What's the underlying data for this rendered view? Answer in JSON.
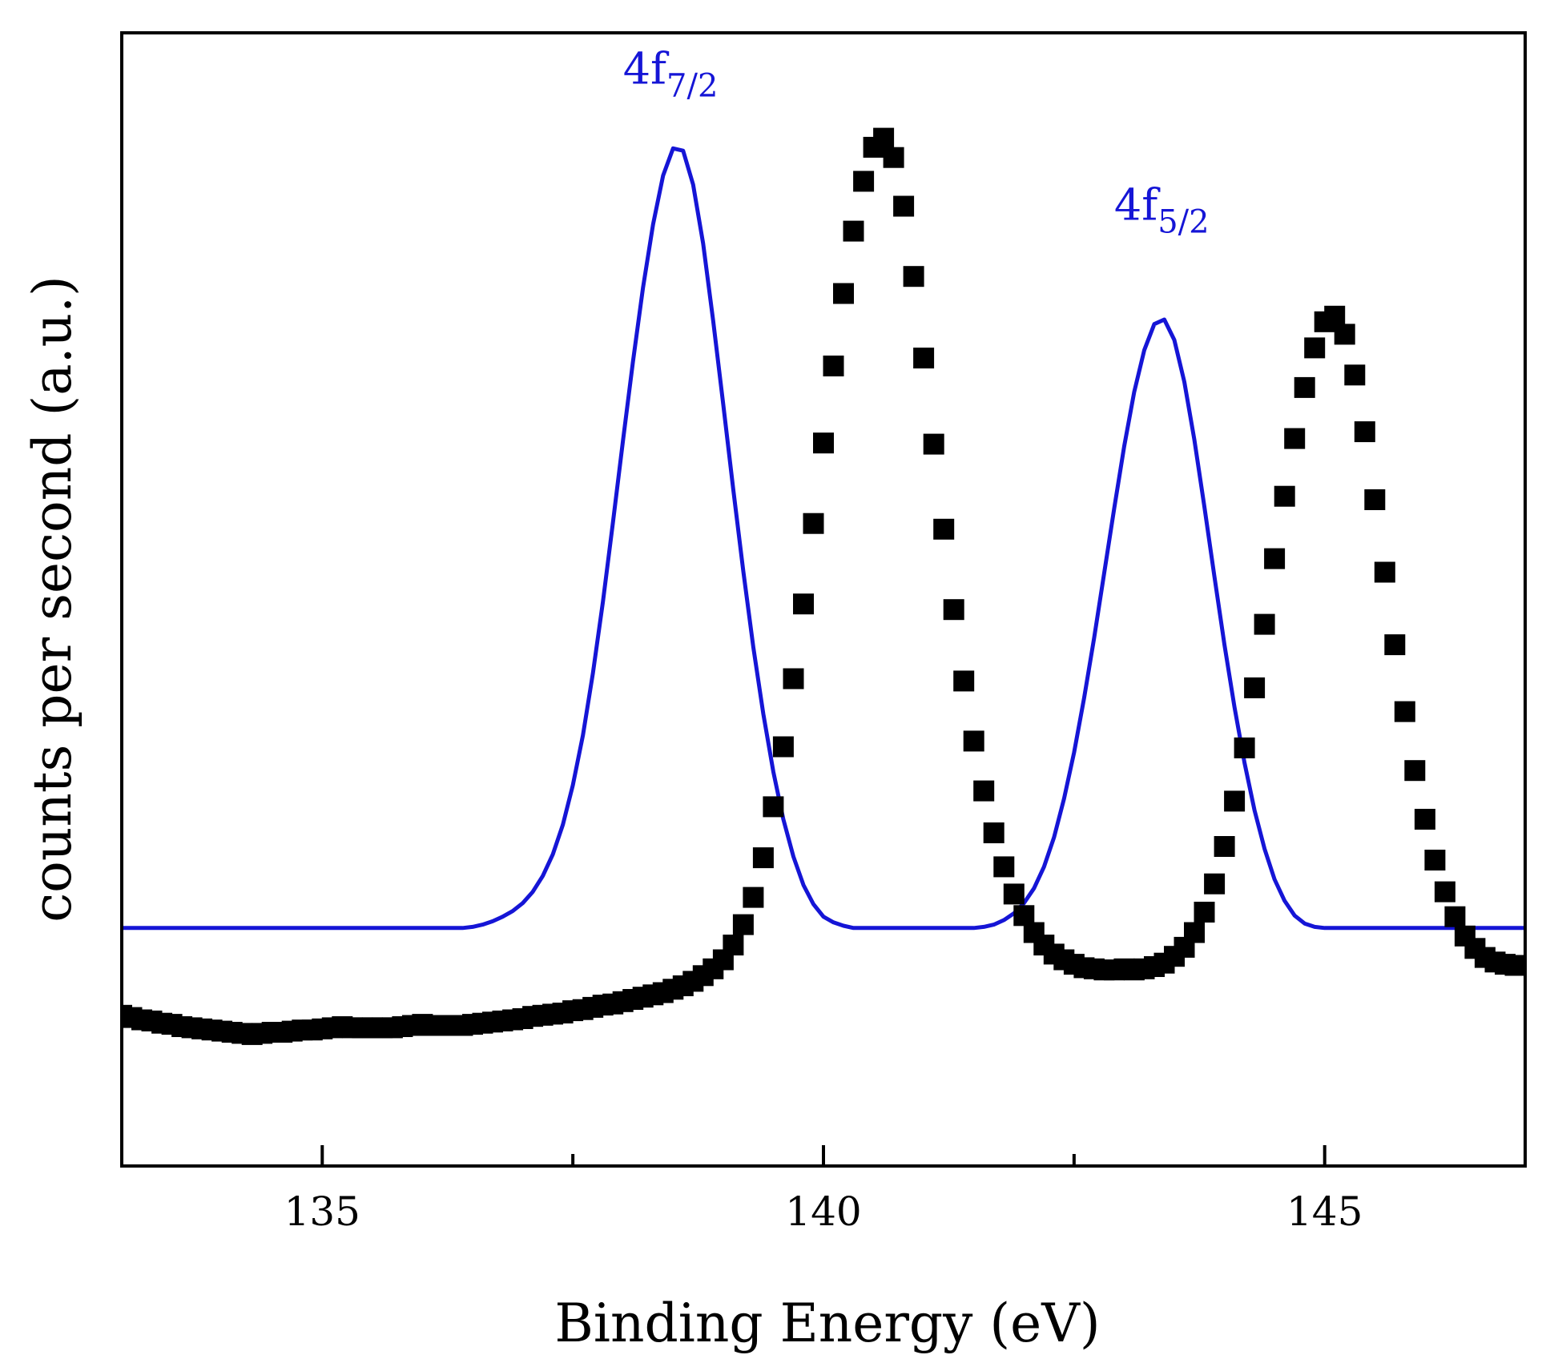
{
  "chart_data": {
    "type": "scatter",
    "title": "",
    "xlabel": "Binding Energy (eV)",
    "ylabel": "counts per second (a.u.)",
    "xlim": [
      133,
      147
    ],
    "ylim": [
      0,
      100
    ],
    "x_ticks": [
      135,
      140,
      145
    ],
    "x_tick_labels": [
      "135",
      "140",
      "145"
    ],
    "x_minor_ticks": [
      137.5,
      142.5
    ],
    "y_ticks": [],
    "grid": false,
    "legend": "none",
    "series": [
      {
        "name": "measured",
        "style": "square-markers",
        "color": "#000000",
        "note": "sampled every 0.1 eV from 133.0 to 147.0 eV",
        "x_start": 133.0,
        "x_step": 0.1,
        "y": [
          13.3,
          13.1,
          12.9,
          12.8,
          12.6,
          12.5,
          12.3,
          12.2,
          12.1,
          12.0,
          11.9,
          11.8,
          11.7,
          11.6,
          11.7,
          11.8,
          11.8,
          11.9,
          12.0,
          12.0,
          12.1,
          12.2,
          12.3,
          12.2,
          12.2,
          12.2,
          12.2,
          12.2,
          12.3,
          12.4,
          12.5,
          12.4,
          12.4,
          12.4,
          12.4,
          12.5,
          12.6,
          12.7,
          12.8,
          12.9,
          13.0,
          13.2,
          13.3,
          13.4,
          13.5,
          13.7,
          13.8,
          14.0,
          14.2,
          14.3,
          14.5,
          14.7,
          14.9,
          15.1,
          15.3,
          15.6,
          15.9,
          16.3,
          16.8,
          17.4,
          18.2,
          19.5,
          21.3,
          23.7,
          27.2,
          31.7,
          37.0,
          43.0,
          49.6,
          56.7,
          63.8,
          70.6,
          77.0,
          82.5,
          86.9,
          89.9,
          90.7,
          89.0,
          84.7,
          78.5,
          71.3,
          63.7,
          56.2,
          49.1,
          42.8,
          37.5,
          33.1,
          29.4,
          26.4,
          24.0,
          22.1,
          20.6,
          19.5,
          18.7,
          18.2,
          17.8,
          17.5,
          17.4,
          17.3,
          17.3,
          17.4,
          17.3,
          17.4,
          17.6,
          17.9,
          18.5,
          19.3,
          20.6,
          22.4,
          24.9,
          28.2,
          32.2,
          36.9,
          42.2,
          47.8,
          53.6,
          59.1,
          64.2,
          68.7,
          72.2,
          74.5,
          75.0,
          73.4,
          69.8,
          64.8,
          58.8,
          52.4,
          46.0,
          40.1,
          34.9,
          30.6,
          27.0,
          24.2,
          22.0,
          20.3,
          19.2,
          18.4,
          18.0,
          17.8,
          17.7,
          17.7
        ]
      },
      {
        "name": "fit",
        "style": "line",
        "color": "#1515d6",
        "note": "sampled every 0.1 eV from 133.0 to 147.0 eV",
        "x_start": 133.0,
        "x_step": 0.1,
        "y": [
          21.0,
          21.0,
          21.0,
          21.0,
          21.0,
          21.0,
          21.0,
          21.0,
          21.0,
          21.0,
          21.0,
          21.0,
          21.0,
          21.0,
          21.0,
          21.0,
          21.0,
          21.0,
          21.0,
          21.0,
          21.0,
          21.0,
          21.0,
          21.0,
          21.0,
          21.0,
          21.0,
          21.0,
          21.0,
          21.0,
          21.0,
          21.0,
          21.0,
          21.0,
          21.0,
          21.1,
          21.3,
          21.6,
          22.0,
          22.5,
          23.2,
          24.2,
          25.6,
          27.5,
          30.1,
          33.6,
          38.0,
          43.5,
          49.8,
          56.8,
          64.0,
          71.0,
          77.5,
          83.1,
          87.4,
          89.8,
          89.6,
          86.6,
          81.4,
          74.6,
          67.2,
          59.7,
          52.5,
          45.8,
          39.9,
          34.8,
          30.6,
          27.3,
          24.8,
          23.1,
          22.0,
          21.5,
          21.2,
          21.0,
          21.0,
          21.0,
          21.0,
          21.0,
          21.0,
          21.0,
          21.0,
          21.0,
          21.0,
          21.0,
          21.0,
          21.0,
          21.1,
          21.3,
          21.7,
          22.3,
          23.2,
          24.5,
          26.4,
          29.0,
          32.4,
          36.5,
          41.3,
          46.6,
          52.3,
          58.0,
          63.5,
          68.3,
          72.0,
          74.3,
          74.7,
          72.9,
          69.2,
          64.1,
          58.2,
          52.0,
          46.0,
          40.5,
          35.6,
          31.4,
          28.0,
          25.3,
          23.4,
          22.1,
          21.4,
          21.1,
          21.0,
          21.0,
          21.0,
          21.0,
          21.0,
          21.0,
          21.0,
          21.0,
          21.0,
          21.0,
          21.0,
          21.0,
          21.0,
          21.0,
          21.0,
          21.0,
          21.0,
          21.0,
          21.0,
          21.0,
          21.0
        ]
      }
    ],
    "annotations": [
      {
        "id": "peak_7_2",
        "main": "4f",
        "sub": "7/2",
        "x": 138.0,
        "y": 95.5,
        "color": "#1515d6"
      },
      {
        "id": "peak_5_2",
        "main": "4f",
        "sub": "5/2",
        "x": 142.9,
        "y": 83.5,
        "color": "#1515d6"
      }
    ]
  }
}
